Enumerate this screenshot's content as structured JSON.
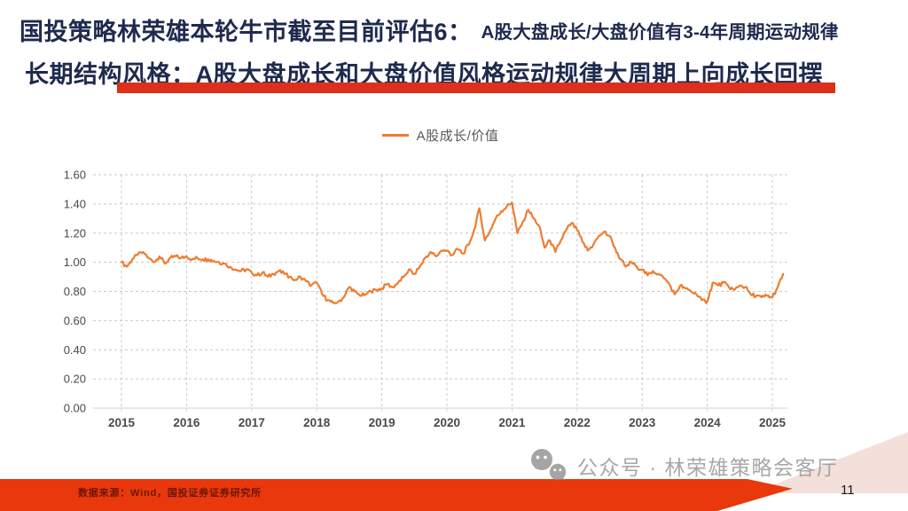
{
  "slide": {
    "title_line1_main": "国投策略林荣雄本轮牛市截至目前评估6：",
    "title_line1_sub": "A股大盘成长/大盘价值有3-4年周期运动规律",
    "title_line2": "长期结构风格：A股大盘成长和大盘价值风格运动规律大周期上向成长回摆",
    "page_number": "11"
  },
  "footer": {
    "source_text": "数据来源：Wind，国投证券证券研究所"
  },
  "watermark": {
    "icon": "wechat-icon",
    "text": "公众号 · 林荣雄策略会客厅"
  },
  "colors": {
    "title_navy": "#1E2A4E",
    "accent_red": "#DD2F1B",
    "footer_red": "#E8380C",
    "line_orange": "#ED7D31",
    "grid_gray": "#C9C9C9",
    "axis_gray": "#D9D9D9",
    "tick_text": "#4A4A4A"
  },
  "chart_data": {
    "type": "line",
    "legend_label": "A股成长/价值",
    "grid": "dashed",
    "legend_position": "top-center",
    "ylim": [
      0.0,
      1.6
    ],
    "ytick_step": 0.2,
    "yticks": [
      "1.60",
      "1.40",
      "1.20",
      "1.00",
      "0.80",
      "0.60",
      "0.40",
      "0.20",
      "0.00"
    ],
    "xticks": [
      "2015",
      "2016",
      "2017",
      "2018",
      "2019",
      "2020",
      "2021",
      "2022",
      "2023",
      "2024",
      "2025"
    ],
    "x_start_year": 2015,
    "x_step": "monthly",
    "series": [
      {
        "name": "A股成长/价值",
        "color": "#ED7D31",
        "values": [
          1.0,
          0.97,
          1.02,
          1.05,
          1.07,
          1.03,
          1.0,
          1.04,
          0.99,
          1.03,
          1.04,
          1.03,
          1.04,
          1.02,
          1.03,
          1.02,
          1.02,
          1.01,
          1.0,
          0.99,
          0.97,
          0.95,
          0.94,
          0.95,
          0.93,
          0.91,
          0.93,
          0.9,
          0.92,
          0.94,
          0.92,
          0.9,
          0.88,
          0.9,
          0.87,
          0.84,
          0.86,
          0.78,
          0.74,
          0.72,
          0.73,
          0.76,
          0.83,
          0.8,
          0.77,
          0.78,
          0.8,
          0.81,
          0.82,
          0.85,
          0.83,
          0.86,
          0.9,
          0.95,
          0.92,
          0.97,
          1.03,
          1.07,
          1.04,
          1.08,
          1.08,
          1.05,
          1.09,
          1.06,
          1.12,
          1.22,
          1.37,
          1.15,
          1.22,
          1.3,
          1.35,
          1.38,
          1.41,
          1.2,
          1.28,
          1.36,
          1.3,
          1.25,
          1.1,
          1.15,
          1.07,
          1.15,
          1.22,
          1.27,
          1.22,
          1.14,
          1.08,
          1.12,
          1.18,
          1.21,
          1.18,
          1.1,
          1.02,
          0.97,
          1.0,
          0.97,
          0.95,
          0.91,
          0.94,
          0.92,
          0.89,
          0.85,
          0.78,
          0.84,
          0.82,
          0.8,
          0.78,
          0.74,
          0.73,
          0.86,
          0.84,
          0.86,
          0.83,
          0.81,
          0.84,
          0.83,
          0.78,
          0.77,
          0.76,
          0.77,
          0.76,
          0.83,
          0.92
        ]
      }
    ]
  }
}
